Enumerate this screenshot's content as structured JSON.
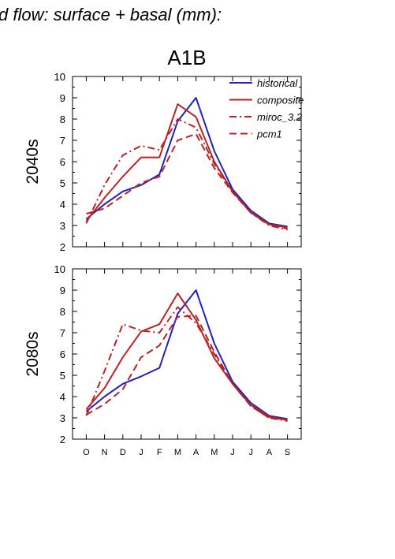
{
  "suptitle": "d flow: surface + basal (mm):",
  "chart_data": [
    {
      "type": "line",
      "title": "A1B",
      "ylabel": "2040s",
      "categories": [
        "O",
        "N",
        "D",
        "J",
        "F",
        "M",
        "A",
        "M",
        "J",
        "J",
        "A",
        "S"
      ],
      "ylim": [
        2,
        10
      ],
      "yticks": [
        2,
        3,
        4,
        5,
        6,
        7,
        8,
        9,
        10
      ],
      "legend_position": "top-right",
      "series": [
        {
          "name": "historical",
          "color": "#2222bb",
          "dash": "solid",
          "values": [
            3.3,
            4.0,
            4.6,
            4.9,
            5.4,
            7.9,
            9.0,
            6.5,
            4.7,
            3.7,
            3.1,
            2.95
          ]
        },
        {
          "name": "composite",
          "color": "#bb2222",
          "dash": "solid",
          "values": [
            3.2,
            4.3,
            5.3,
            6.2,
            6.2,
            8.7,
            8.1,
            6.0,
            4.6,
            3.6,
            3.05,
            2.9
          ]
        },
        {
          "name": "miroc_3.2",
          "color": "#bb2222",
          "dash": "dashdot",
          "values": [
            3.1,
            4.9,
            6.3,
            6.75,
            6.55,
            8.0,
            7.6,
            5.9,
            4.6,
            3.6,
            3.0,
            2.8
          ]
        },
        {
          "name": "pcm1",
          "color": "#bb2222",
          "dash": "dash",
          "values": [
            3.55,
            3.8,
            4.4,
            5.0,
            5.3,
            7.0,
            7.3,
            5.7,
            4.55,
            3.6,
            3.05,
            2.85
          ]
        }
      ]
    },
    {
      "type": "line",
      "title": "",
      "ylabel": "2080s",
      "categories": [
        "O",
        "N",
        "D",
        "J",
        "F",
        "M",
        "A",
        "M",
        "J",
        "J",
        "A",
        "S"
      ],
      "ylim": [
        2,
        10
      ],
      "yticks": [
        2,
        3,
        4,
        5,
        6,
        7,
        8,
        9,
        10
      ],
      "series": [
        {
          "name": "historical",
          "color": "#2222bb",
          "dash": "solid",
          "values": [
            3.3,
            4.0,
            4.6,
            4.95,
            5.35,
            7.9,
            9.0,
            6.5,
            4.7,
            3.7,
            3.1,
            2.95
          ]
        },
        {
          "name": "composite",
          "color": "#bb2222",
          "dash": "solid",
          "values": [
            3.4,
            4.4,
            5.85,
            7.05,
            7.4,
            8.85,
            7.6,
            5.8,
            4.6,
            3.6,
            3.05,
            2.9
          ]
        },
        {
          "name": "miroc_3.2",
          "color": "#bb2222",
          "dash": "dashdot",
          "values": [
            3.1,
            5.2,
            7.4,
            7.1,
            7.0,
            8.2,
            7.45,
            6.0,
            4.6,
            3.55,
            3.0,
            2.85
          ]
        },
        {
          "name": "pcm1",
          "color": "#bb2222",
          "dash": "dash",
          "values": [
            3.15,
            3.65,
            4.35,
            5.85,
            6.4,
            7.75,
            7.8,
            6.1,
            4.6,
            3.55,
            3.0,
            2.9
          ]
        }
      ]
    }
  ]
}
